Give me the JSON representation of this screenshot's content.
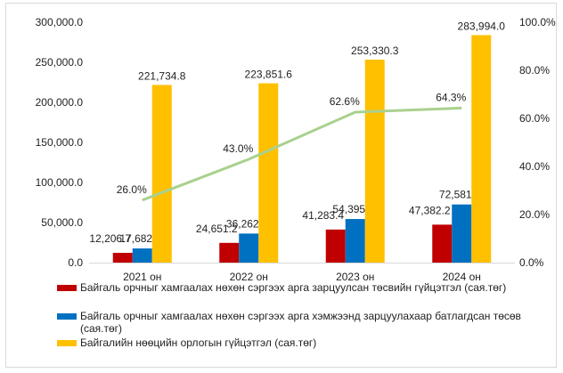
{
  "chart_data": {
    "type": "bar",
    "categories": [
      "2021 он",
      "2022 он",
      "2023 он",
      "2024 он"
    ],
    "series": [
      {
        "name": "Байгаль орчныг хамгаалах нөхөн сэргээх арга зарцуулсан төсвийн гүйцэтгэл (сая.төг)",
        "type": "bar",
        "axis": "left",
        "color": "#c00000",
        "values": [
          12206.7,
          24651.2,
          41283.4,
          47382.2
        ],
        "labels": [
          "12,206.7",
          "24,651.2",
          "41,283.4",
          "47,382.2"
        ]
      },
      {
        "name": "Байгаль орчныг хамгаалах нөхөн сэргээх арга хэмжээнд зарцуулахаар батлагдсан төсөв (сая.төг)",
        "type": "bar",
        "axis": "left",
        "color": "#0070c0",
        "values": [
          17682.3,
          36262.3,
          54395.7,
          72581.6
        ],
        "labels": [
          "17,682.3",
          "36,262.3",
          "54,395.7",
          "72,581.6"
        ]
      },
      {
        "name": "Байгалийн нөөцийн орлогын гүйцэтгэл (сая.төг)",
        "type": "bar",
        "axis": "left",
        "color": "#ffc000",
        "values": [
          221734.8,
          223851.6,
          253330.3,
          283994.0
        ],
        "labels": [
          "221,734.8",
          "223,851.6",
          "253,330.3",
          "283,994.0"
        ]
      },
      {
        "type": "line",
        "axis": "right",
        "color": "#a9d18e",
        "values": [
          26.0,
          43.0,
          62.6,
          64.3
        ],
        "labels": [
          "26.0%",
          "43.0%",
          "62.6%",
          "64.3%"
        ]
      }
    ],
    "y_left": {
      "min": 0,
      "max": 300000,
      "ticks": [
        "0.0",
        "50,000.0",
        "100,000.0",
        "150,000.0",
        "200,000.0",
        "250,000.0",
        "300,000.0"
      ]
    },
    "y_right": {
      "min": 0,
      "max": 100,
      "ticks": [
        "0.0%",
        "20.0%",
        "40.0%",
        "60.0%",
        "80.0%",
        "100.0%"
      ]
    },
    "grid": false,
    "legend_position": "bottom"
  }
}
